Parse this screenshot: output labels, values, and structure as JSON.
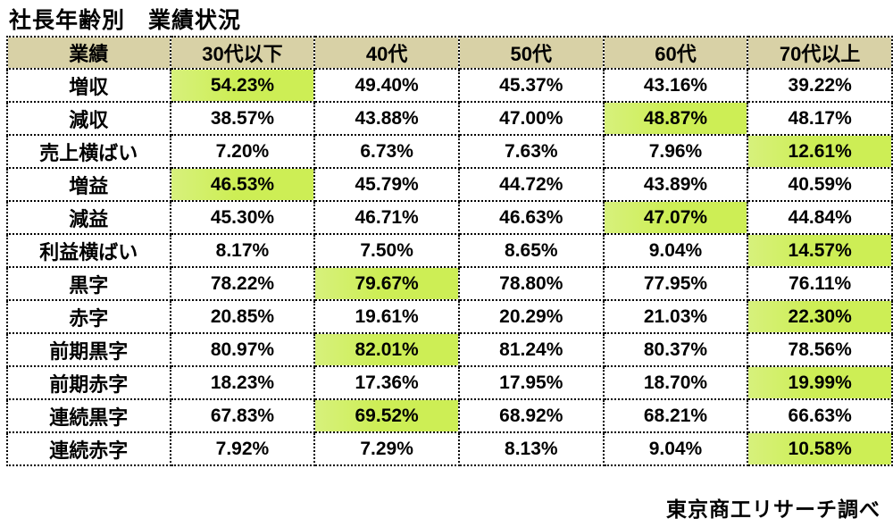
{
  "title": "社長年齢別　業績状況",
  "footer": "東京商工リサーチ調べ",
  "colors": {
    "header_bg": "#d8d1a6",
    "highlight": "#cdee55",
    "border": "#000000",
    "text": "#000000"
  },
  "chart_data": {
    "type": "table",
    "title": "社長年齢別　業績状況",
    "source": "東京商工リサーチ調べ",
    "columns": [
      "業績",
      "30代以下",
      "40代",
      "50代",
      "60代",
      "70代以上"
    ],
    "rows": [
      {
        "label": "増収",
        "values": [
          "54.23%",
          "49.40%",
          "45.37%",
          "43.16%",
          "39.22%"
        ],
        "highlight_index": 0
      },
      {
        "label": "減収",
        "values": [
          "38.57%",
          "43.88%",
          "47.00%",
          "48.87%",
          "48.17%"
        ],
        "highlight_index": 3
      },
      {
        "label": "売上横ばい",
        "values": [
          "7.20%",
          "6.73%",
          "7.63%",
          "7.96%",
          "12.61%"
        ],
        "highlight_index": 4
      },
      {
        "label": "増益",
        "values": [
          "46.53%",
          "45.79%",
          "44.72%",
          "43.89%",
          "40.59%"
        ],
        "highlight_index": 0
      },
      {
        "label": "減益",
        "values": [
          "45.30%",
          "46.71%",
          "46.63%",
          "47.07%",
          "44.84%"
        ],
        "highlight_index": 3
      },
      {
        "label": "利益横ばい",
        "values": [
          "8.17%",
          "7.50%",
          "8.65%",
          "9.04%",
          "14.57%"
        ],
        "highlight_index": 4
      },
      {
        "label": "黒字",
        "values": [
          "78.22%",
          "79.67%",
          "78.80%",
          "77.95%",
          "76.11%"
        ],
        "highlight_index": 1
      },
      {
        "label": "赤字",
        "values": [
          "20.85%",
          "19.61%",
          "20.29%",
          "21.03%",
          "22.30%"
        ],
        "highlight_index": 4
      },
      {
        "label": "前期黒字",
        "values": [
          "80.97%",
          "82.01%",
          "81.24%",
          "80.37%",
          "78.56%"
        ],
        "highlight_index": 1
      },
      {
        "label": "前期赤字",
        "values": [
          "18.23%",
          "17.36%",
          "17.95%",
          "18.70%",
          "19.99%"
        ],
        "highlight_index": 4
      },
      {
        "label": "連続黒字",
        "values": [
          "67.83%",
          "69.52%",
          "68.92%",
          "68.21%",
          "66.63%"
        ],
        "highlight_index": 1
      },
      {
        "label": "連続赤字",
        "values": [
          "7.92%",
          "7.29%",
          "8.13%",
          "9.04%",
          "10.58%"
        ],
        "highlight_index": 4
      }
    ]
  }
}
